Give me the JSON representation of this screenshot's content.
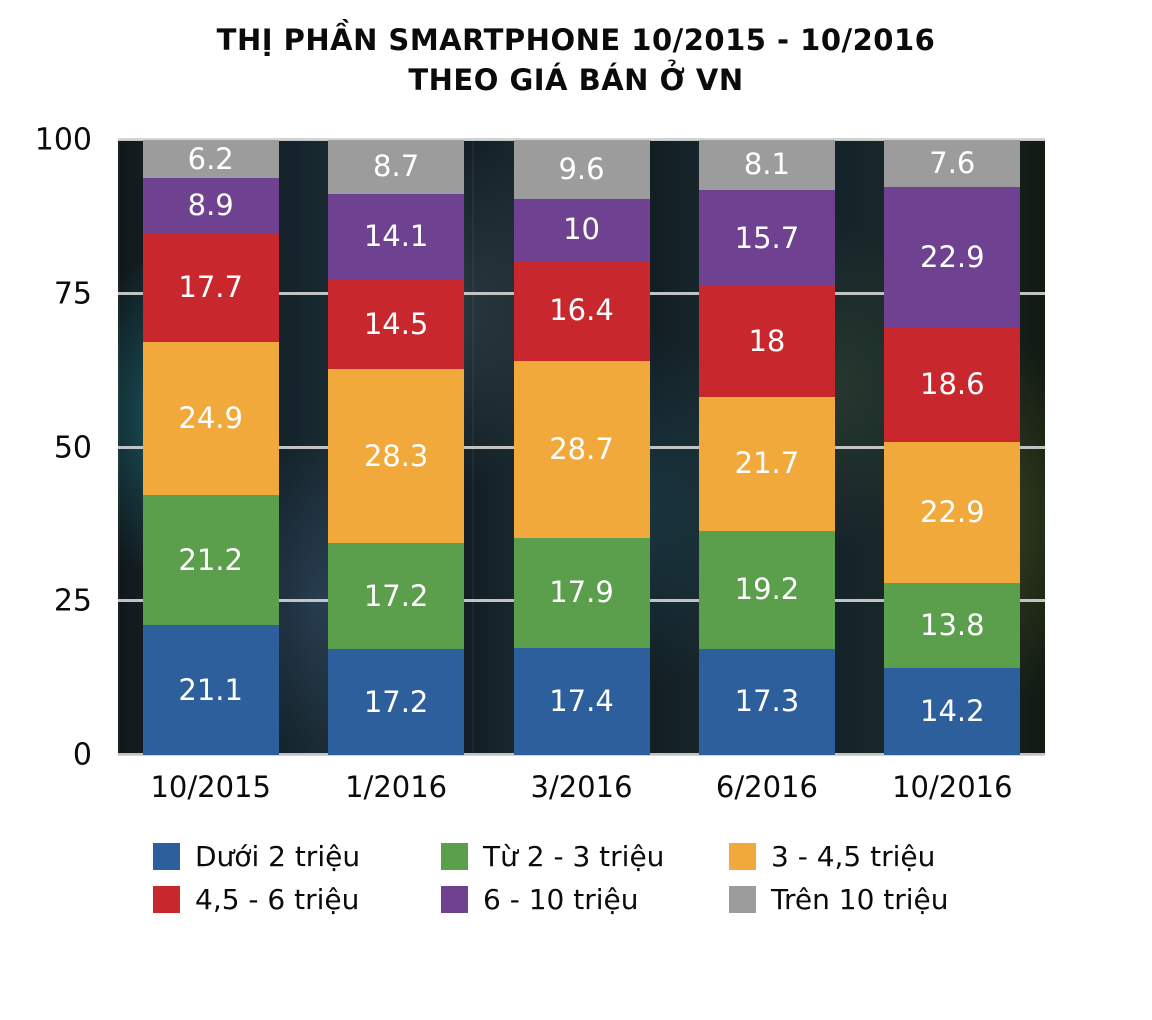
{
  "title": {
    "line1": "THỊ PHẦN SMARTPHONE 10/2015 - 10/2016",
    "line2": "THEO GIÁ BÁN Ở VN"
  },
  "plot_background": "dark smartphone photo collage",
  "chart_data": {
    "type": "bar",
    "stacked": true,
    "title": "THỊ PHẦN SMARTPHONE 10/2015 - 10/2016 THEO GIÁ BÁN Ở VN",
    "categories": [
      "10/2015",
      "1/2016",
      "3/2016",
      "6/2016",
      "10/2016"
    ],
    "series": [
      {
        "name": "Dưới 2 triệu",
        "color": "#2e5f9d",
        "values": [
          21.1,
          17.2,
          17.4,
          17.3,
          14.2
        ]
      },
      {
        "name": "Từ 2 - 3 triệu",
        "color": "#5b9e4b",
        "values": [
          21.2,
          17.2,
          17.9,
          19.2,
          13.8
        ]
      },
      {
        "name": "3 - 4,5 triệu",
        "color": "#f2a93c",
        "values": [
          24.9,
          28.3,
          28.7,
          21.7,
          22.9
        ]
      },
      {
        "name": "4,5 - 6 triệu",
        "color": "#c8282d",
        "values": [
          17.7,
          14.5,
          16.4,
          18,
          18.6
        ]
      },
      {
        "name": "6 - 10 triệu",
        "color": "#6f4291",
        "values": [
          8.9,
          14.1,
          10,
          15.7,
          22.9
        ]
      },
      {
        "name": "Trên 10 triệu",
        "color": "#9c9c9c",
        "values": [
          6.2,
          8.7,
          9.6,
          8.1,
          7.6
        ]
      }
    ],
    "xlabel": "",
    "ylabel": "",
    "ylim": [
      0,
      100
    ],
    "y_ticks": [
      0,
      25,
      50,
      75,
      100
    ],
    "grid": true,
    "legend_position": "bottom",
    "value_labels": "inside, white"
  }
}
